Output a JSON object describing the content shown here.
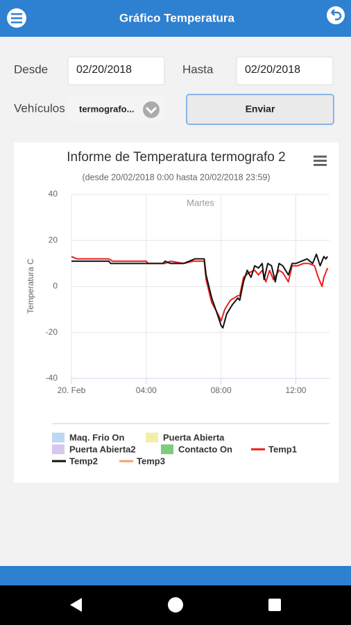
{
  "app_bar": {
    "title": "Gráfico Temperatura"
  },
  "form": {
    "desde_label": "Desde",
    "desde_value": "02/20/2018",
    "hasta_label": "Hasta",
    "hasta_value": "02/20/2018",
    "vehiculos_label": "Vehículos",
    "vehiculo_value": "termografo...",
    "button": "Enviar"
  },
  "chart_data": {
    "type": "line",
    "title": "Informe de Temperatura termografo 2",
    "subtitle": "(desde 20/02/2018 0:00 hasta 20/02/2018 23:59)",
    "y_label": "Temperatura C",
    "annotation": "Martes",
    "xlim": [
      0,
      13.8
    ],
    "xticks": [
      {
        "value": 0,
        "label": "20. Feb"
      },
      {
        "value": 4,
        "label": "04:00"
      },
      {
        "value": 8,
        "label": "08:00"
      },
      {
        "value": 12,
        "label": "12:00"
      }
    ],
    "ylim": [
      -40,
      40
    ],
    "yticks": [
      -40,
      -20,
      0,
      20,
      40
    ],
    "grid": true,
    "series": [
      {
        "name": "Maq. Frio On",
        "type": "area",
        "color": "#bcd8f5",
        "x": [],
        "values": []
      },
      {
        "name": "Puerta Abierta",
        "type": "area",
        "color": "#f3efa8",
        "x": [],
        "values": []
      },
      {
        "name": "Puerta Abierta2",
        "type": "area",
        "color": "#d4c8ee",
        "x": [],
        "values": []
      },
      {
        "name": "Contacto On",
        "type": "area",
        "color": "#7dcc7d",
        "x": [],
        "values": []
      },
      {
        "name": "Temp1",
        "type": "line",
        "color": "#ee1c1c",
        "x": [
          0,
          0.3,
          2.0,
          2.2,
          4.0,
          4.1,
          5.0,
          5.3,
          6.0,
          6.5,
          7.1,
          7.2,
          7.5,
          7.9,
          8.0,
          8.2,
          8.5,
          8.9,
          9.0,
          9.2,
          9.5,
          9.8,
          10.0,
          10.2,
          10.4,
          10.6,
          10.8,
          11.1,
          11.3,
          11.6,
          11.8,
          12.1,
          12.4,
          12.7,
          13.0,
          13.2,
          13.4,
          13.5,
          13.7
        ],
        "values": [
          13,
          12,
          12,
          11,
          11,
          10,
          10,
          11,
          10,
          11,
          11,
          3,
          -7,
          -13,
          -15,
          -10,
          -6,
          -4,
          -4,
          4,
          6,
          7,
          5,
          7,
          2,
          7,
          3,
          7,
          6,
          2,
          9,
          9,
          10,
          10,
          9,
          4,
          0,
          4,
          8
        ]
      },
      {
        "name": "Temp2",
        "type": "line",
        "color": "#111111",
        "x": [
          0,
          2.0,
          2.1,
          4.1,
          4.9,
          5.0,
          5.3,
          6.0,
          6.3,
          6.6,
          7.1,
          7.2,
          7.5,
          7.8,
          8.0,
          8.1,
          8.3,
          8.6,
          8.9,
          9.0,
          9.1,
          9.2,
          9.4,
          9.6,
          9.8,
          10.0,
          10.2,
          10.3,
          10.5,
          10.7,
          10.9,
          11.1,
          11.3,
          11.6,
          11.8,
          12.0,
          12.3,
          12.6,
          12.9,
          13.1,
          13.3,
          13.5,
          13.6,
          13.7
        ],
        "values": [
          11,
          11,
          10,
          10,
          10,
          11,
          10,
          10,
          11,
          12,
          12,
          5,
          -5,
          -12,
          -17,
          -18,
          -12,
          -8,
          -5,
          -6,
          -2,
          2,
          7,
          4,
          9,
          8,
          10,
          3,
          10,
          9,
          2,
          10,
          9,
          5,
          10,
          10,
          11,
          12,
          10,
          14,
          9,
          13,
          12,
          13
        ]
      },
      {
        "name": "Temp3",
        "type": "line",
        "color": "#f4a070",
        "x": [],
        "values": []
      }
    ]
  }
}
